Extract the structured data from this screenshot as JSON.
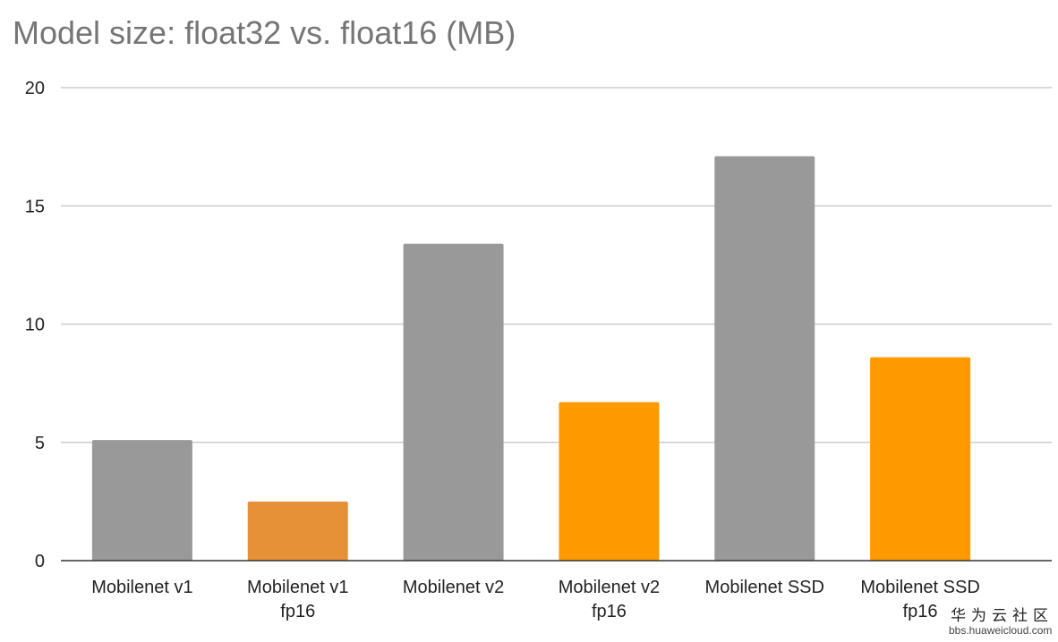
{
  "chart_data": {
    "type": "bar",
    "title": "Model size: float32 vs. float16 (MB)",
    "xlabel": "",
    "ylabel": "",
    "ylim": [
      0,
      20
    ],
    "yticks": [
      0,
      5,
      10,
      15,
      20
    ],
    "grid": true,
    "legend": "none",
    "categories": [
      [
        "Mobilenet v1"
      ],
      [
        "Mobilenet v1",
        "fp16"
      ],
      [
        "Mobilenet v2"
      ],
      [
        "Mobilenet v2",
        "fp16"
      ],
      [
        "Mobilenet SSD"
      ],
      [
        "Mobilenet SSD",
        "fp16"
      ]
    ],
    "values": [
      5.1,
      2.5,
      13.4,
      6.7,
      17.1,
      8.6
    ],
    "bar_colors": [
      "#999999",
      "#e69138",
      "#999999",
      "#ff9900",
      "#999999",
      "#ff9900"
    ]
  },
  "watermark": {
    "text": "华为云社区",
    "url": "bbs.huaweicloud.com"
  },
  "colors": {
    "title": "#757575",
    "grid": "#cccccc",
    "axis": "#333333",
    "text": "#222222"
  }
}
